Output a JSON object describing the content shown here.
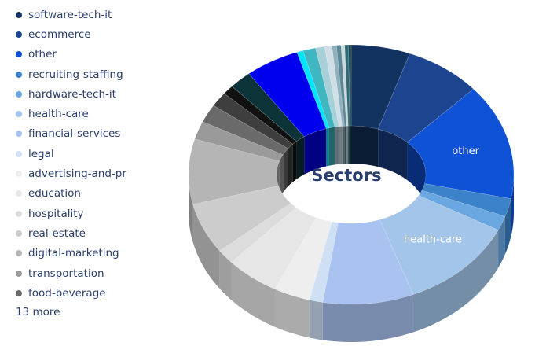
{
  "chart_data": {
    "type": "pie",
    "variant": "3d-donut",
    "center_title": "Sectors",
    "legend_position": "left",
    "more_label": "13 more",
    "slices": [
      {
        "label": "software-tech-it",
        "value": 6.5,
        "color": "#12335f",
        "show_label": false
      },
      {
        "label": "ecommerce",
        "value": 8.5,
        "color": "#1d448e",
        "show_label": false
      },
      {
        "label": "other",
        "value": 16,
        "color": "#0f52d6",
        "show_label": true
      },
      {
        "label": "recruiting-staffing",
        "value": 2.5,
        "color": "#3b82c8",
        "show_label": false
      },
      {
        "label": "hardware-tech-it",
        "value": 2,
        "color": "#6aa7e0",
        "show_label": false
      },
      {
        "label": "health-care",
        "value": 13,
        "color": "#a3c5ea",
        "show_label": true
      },
      {
        "label": "financial-services",
        "value": 10,
        "color": "#a9c2f0",
        "show_label": false
      },
      {
        "label": "legal",
        "value": 1.5,
        "color": "#cfe0f5",
        "show_label": false
      },
      {
        "label": "advertising-and-pr",
        "value": 4,
        "color": "#eeeeee",
        "show_label": false
      },
      {
        "label": "education",
        "value": 6,
        "color": "#e6e6e6",
        "show_label": false
      },
      {
        "label": "hospitality",
        "value": 2,
        "color": "#dcdcdc",
        "show_label": false
      },
      {
        "label": "real-estate",
        "value": 7,
        "color": "#cccccc",
        "show_label": false
      },
      {
        "label": "digital-marketing",
        "value": 9,
        "color": "#b5b5b5",
        "show_label": false
      },
      {
        "label": "transportation",
        "value": 2.5,
        "color": "#9a9a9a",
        "show_label": false
      },
      {
        "label": "food-beverage",
        "value": 2.5,
        "color": "#6a6a6a",
        "show_label": false
      },
      {
        "label": "",
        "value": 2,
        "color": "#3e3e3e",
        "show_label": false
      },
      {
        "label": "",
        "value": 1.3,
        "color": "#111111",
        "show_label": false
      },
      {
        "label": "",
        "value": 2.5,
        "color": "#0b3338",
        "show_label": false
      },
      {
        "label": "",
        "value": 6,
        "color": "#0000ee",
        "show_label": false
      },
      {
        "label": "",
        "value": 0.7,
        "color": "#00e5ff",
        "show_label": false
      },
      {
        "label": "",
        "value": 1.4,
        "color": "#3fb6c0",
        "show_label": false
      },
      {
        "label": "",
        "value": 1,
        "color": "#a8d0d8",
        "show_label": false
      },
      {
        "label": "",
        "value": 0.8,
        "color": "#d0dfe6",
        "show_label": false
      },
      {
        "label": "",
        "value": 0.5,
        "color": "#8fb0bc",
        "show_label": false
      },
      {
        "label": "",
        "value": 0.5,
        "color": "#5f8896",
        "show_label": false
      },
      {
        "label": "",
        "value": 0.4,
        "color": "#c8d8dc",
        "show_label": false
      },
      {
        "label": "",
        "value": 0.4,
        "color": "#2f6a78",
        "show_label": false
      },
      {
        "label": "",
        "value": 0.3,
        "color": "#1f4a50",
        "show_label": false
      }
    ]
  }
}
